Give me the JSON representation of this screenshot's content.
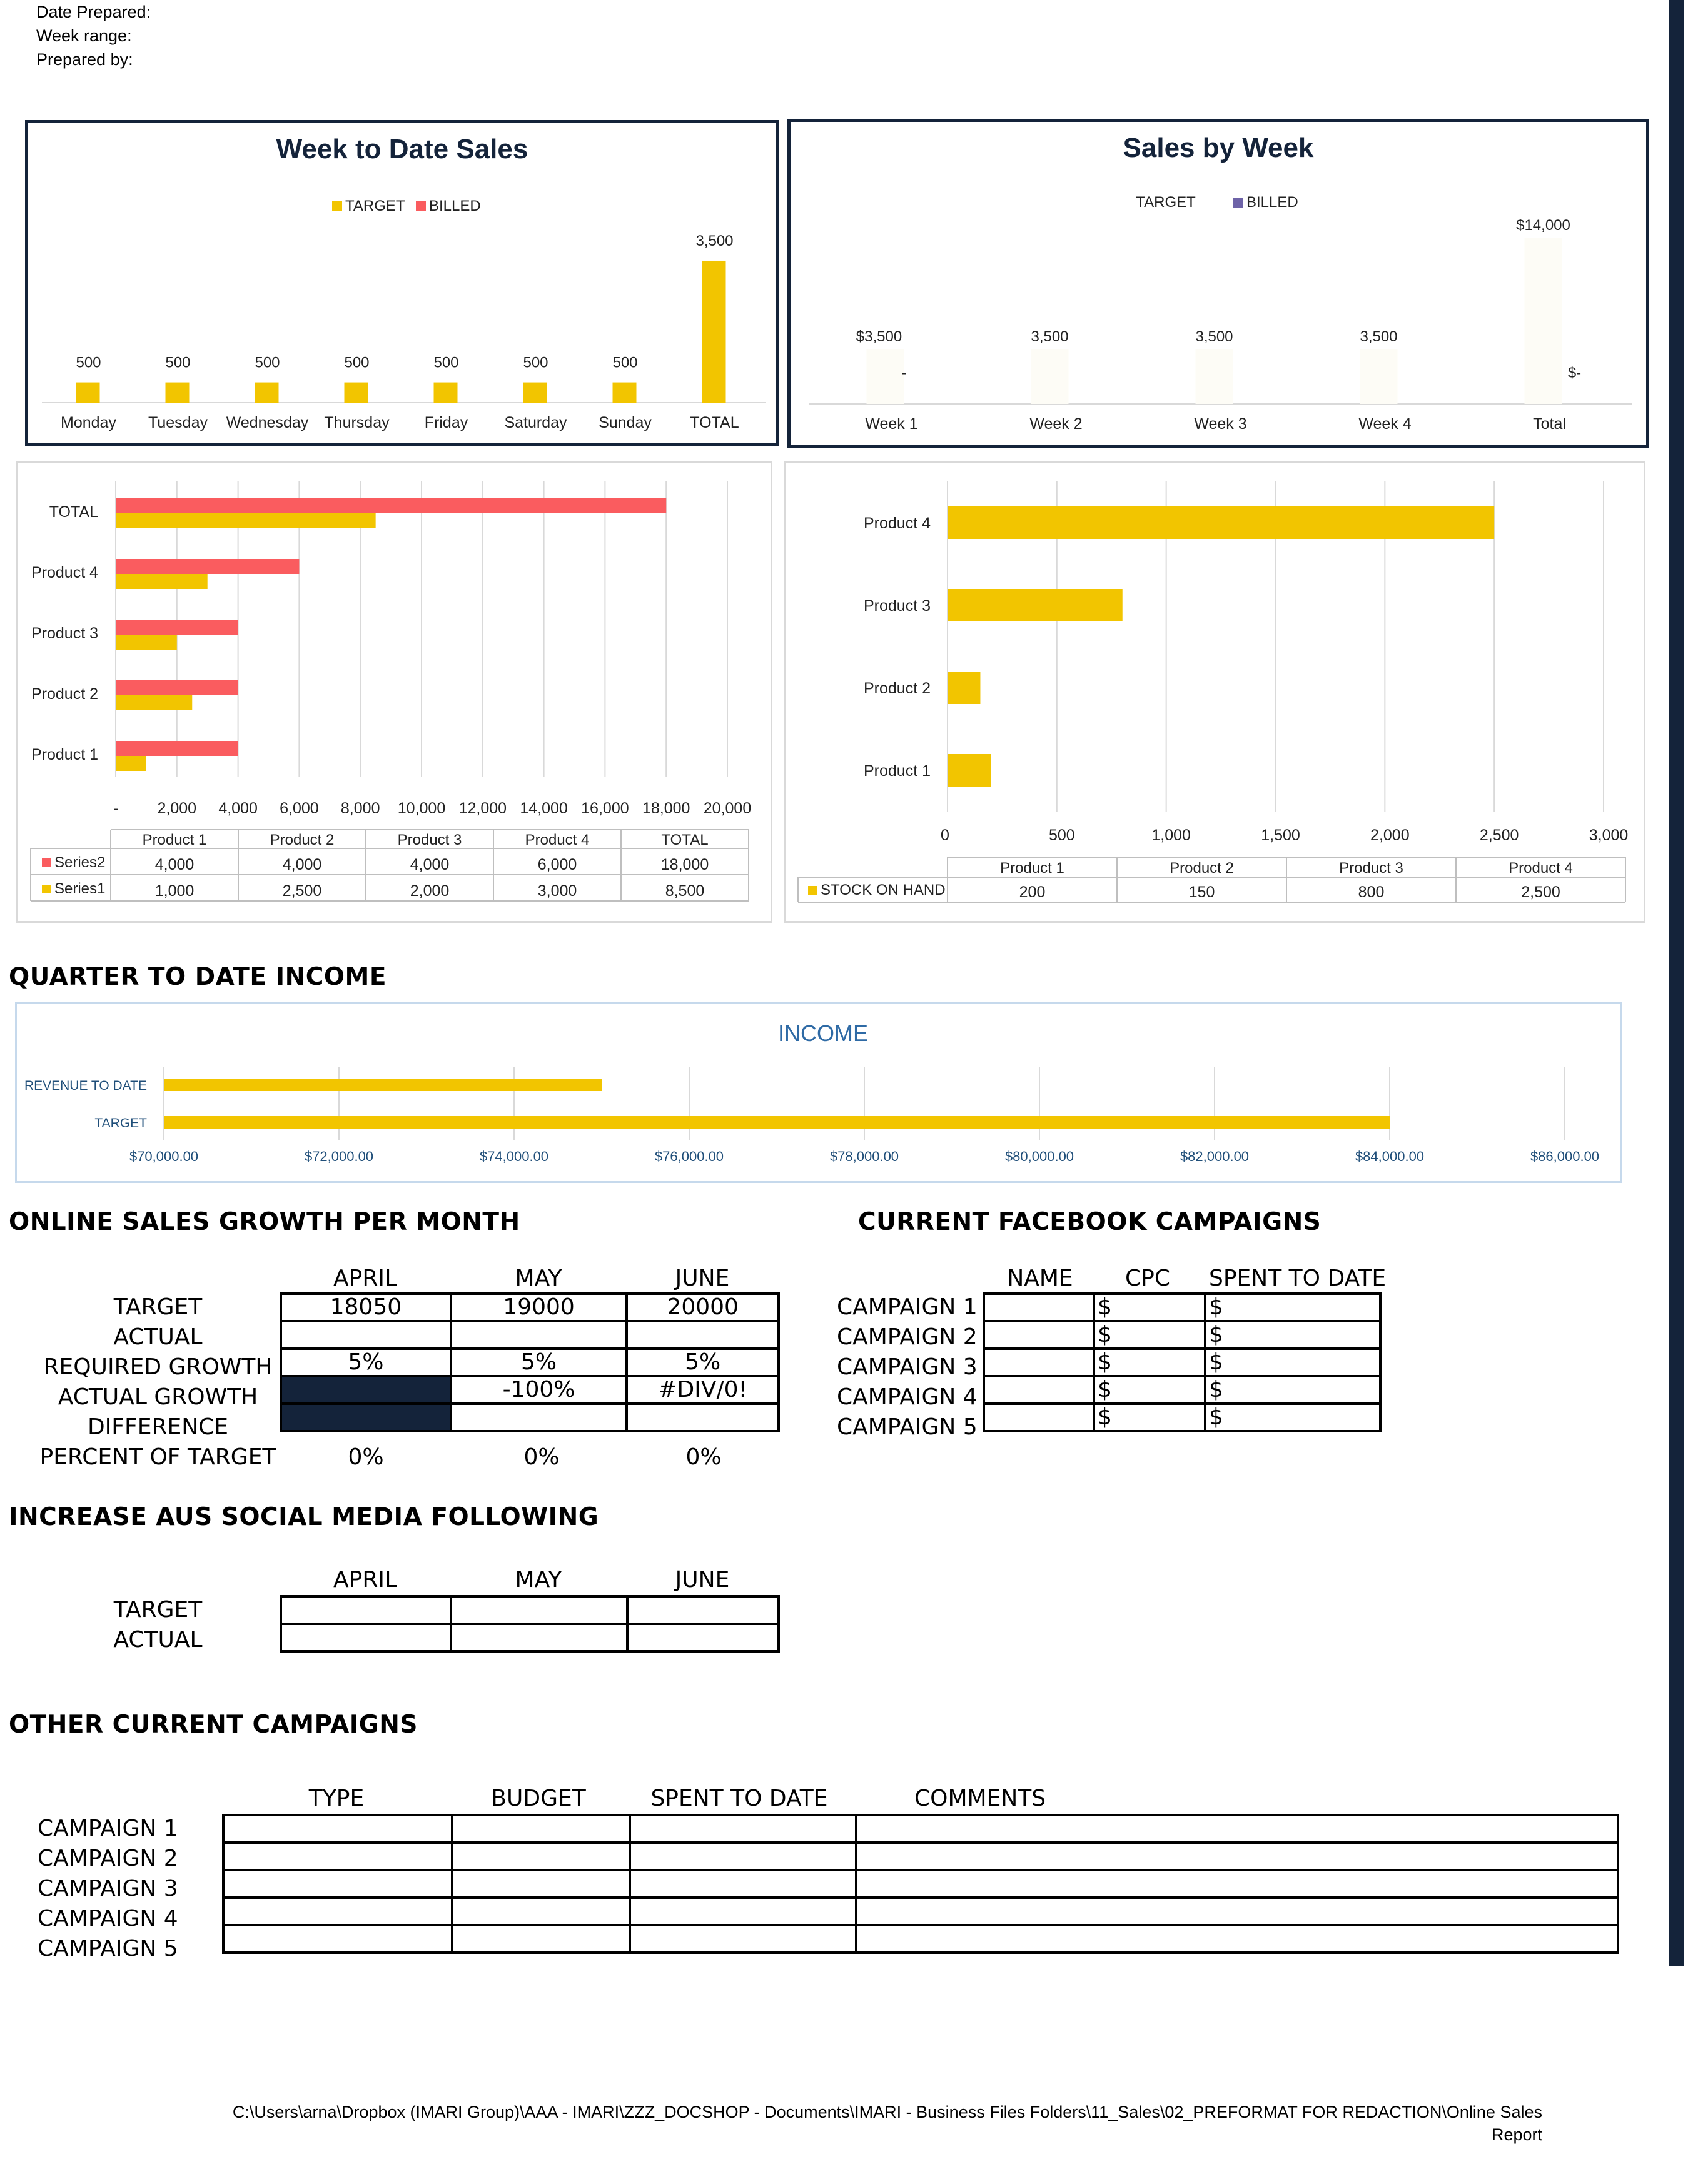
{
  "header": {
    "date_prepared": "Date Prepared:",
    "week_range": "Week range:",
    "prepared_by": "Prepared by:"
  },
  "week_to_date": {
    "title": "Week to Date Sales",
    "legend_target": "TARGET",
    "legend_billed": "BILLED"
  },
  "sales_by_week": {
    "title": "Sales by Week",
    "legend_target": "TARGET",
    "legend_billed": "BILLED"
  },
  "income": {
    "section_title": "QUARTER TO DATE INCOME",
    "chart_title": "INCOME"
  },
  "online_growth": {
    "title": "ONLINE SALES GROWTH PER MONTH",
    "months": [
      "APRIL",
      "MAY",
      "JUNE"
    ],
    "row_labels": [
      "TARGET",
      "ACTUAL",
      "REQUIRED GROWTH",
      "ACTUAL GROWTH",
      "DIFFERENCE",
      "PERCENT OF TARGET"
    ],
    "target": [
      "18050",
      "19000",
      "20000"
    ],
    "required_growth": [
      "5%",
      "5%",
      "5%"
    ],
    "actual_growth": [
      "",
      "-100%",
      "#DIV/0!"
    ],
    "percent_of_target": [
      "0%",
      "0%",
      "0%"
    ]
  },
  "facebook": {
    "title": "CURRENT FACEBOOK CAMPAIGNS",
    "col_name": "NAME",
    "col_cpc": "CPC",
    "col_spent": "SPENT TO DATE",
    "campaigns": [
      "CAMPAIGN 1",
      "CAMPAIGN 2",
      "CAMPAIGN 3",
      "CAMPAIGN 4",
      "CAMPAIGN 5"
    ],
    "currency": "$"
  },
  "social": {
    "title": "INCREASE AUS SOCIAL MEDIA FOLLOWING",
    "months": [
      "APRIL",
      "MAY",
      "JUNE"
    ],
    "row_labels": [
      "TARGET",
      "ACTUAL"
    ]
  },
  "other": {
    "title": "OTHER CURRENT CAMPAIGNS",
    "col_type": "TYPE",
    "col_budget": "BUDGET",
    "col_spent": "SPENT TO DATE",
    "col_comments": "COMMENTS",
    "campaigns": [
      "CAMPAIGN 1",
      "CAMPAIGN 2",
      "CAMPAIGN 3",
      "CAMPAIGN 4",
      "CAMPAIGN 5"
    ]
  },
  "footer": {
    "path_line1": "C:\\Users\\arna\\Dropbox (IMARI Group)\\AAA - IMARI\\ZZZ_DOCSHOP - Documents\\IMARI - Business Files Folders\\11_Sales\\02_PREFORMAT FOR REDACTION\\Online Sales",
    "path_line2": "Report"
  },
  "colors": {
    "gold": "#f2c500",
    "red": "#fa5c5f",
    "purple": "#6e63a8",
    "navy": "#14233a",
    "income_blue": "#2e6aa5",
    "tick_blue": "#1f4e79"
  },
  "chart_data": [
    {
      "id": "week_to_date",
      "type": "bar",
      "categories": [
        "Monday",
        "Tuesday",
        "Wednesday",
        "Thursday",
        "Friday",
        "Saturday",
        "Sunday",
        "TOTAL"
      ],
      "series": [
        {
          "name": "TARGET",
          "values": [
            500,
            500,
            500,
            500,
            500,
            500,
            500,
            3500
          ],
          "labels": [
            "500",
            "500",
            "500",
            "500",
            "500",
            "500",
            "500",
            "3,500"
          ]
        },
        {
          "name": "BILLED",
          "values": [
            0,
            0,
            0,
            0,
            0,
            0,
            0,
            0
          ]
        }
      ],
      "ylim": [
        0,
        3700
      ]
    },
    {
      "id": "sales_by_week",
      "type": "bar",
      "categories": [
        "Week 1",
        "Week 2",
        "Week 3",
        "Week 4",
        "Total"
      ],
      "series": [
        {
          "name": "TARGET",
          "values": [
            3500,
            3500,
            3500,
            3500,
            14000
          ],
          "labels": [
            "$3,500",
            "3,500",
            "3,500",
            "3,500",
            "$14,000"
          ]
        },
        {
          "name": "BILLED",
          "values": [
            0,
            0,
            0,
            0,
            0
          ],
          "labels": [
            "-",
            "",
            "",
            "",
            "$-"
          ]
        }
      ],
      "ylim": [
        0,
        14000
      ]
    },
    {
      "id": "products_billed",
      "type": "bar",
      "orientation": "horizontal",
      "categories": [
        "Product 1",
        "Product 2",
        "Product 3",
        "Product 4",
        "TOTAL"
      ],
      "series": [
        {
          "name": "Series2",
          "values": [
            4000,
            4000,
            4000,
            6000,
            18000
          ],
          "labels": [
            "4,000",
            "4,000",
            "4,000",
            "6,000",
            "18,000"
          ]
        },
        {
          "name": "Series1",
          "values": [
            1000,
            2500,
            2000,
            3000,
            8500
          ],
          "labels": [
            "1,000",
            "2,500",
            "2,000",
            "3,000",
            "8,500"
          ]
        }
      ],
      "xticks": [
        "-",
        "2,000",
        "4,000",
        "6,000",
        "8,000",
        "10,000",
        "12,000",
        "14,000",
        "16,000",
        "18,000",
        "20,000"
      ],
      "xlim": [
        0,
        20000
      ]
    },
    {
      "id": "stock_on_hand",
      "type": "bar",
      "orientation": "horizontal",
      "categories": [
        "Product 1",
        "Product 2",
        "Product 3",
        "Product 4"
      ],
      "series": [
        {
          "name": "STOCK ON HAND",
          "values": [
            200,
            150,
            800,
            2500
          ],
          "labels": [
            "200",
            "150",
            "800",
            "2,500"
          ]
        }
      ],
      "xticks": [
        "0",
        "500",
        "1,000",
        "1,500",
        "2,000",
        "2,500",
        "3,000"
      ],
      "xlim": [
        0,
        3000
      ]
    },
    {
      "id": "income",
      "type": "bar",
      "orientation": "horizontal",
      "title": "INCOME",
      "categories": [
        "REVENUE TO DATE",
        "TARGET"
      ],
      "values": [
        75000,
        84000
      ],
      "xticks": [
        "$70,000.00",
        "$72,000.00",
        "$74,000.00",
        "$76,000.00",
        "$78,000.00",
        "$80,000.00",
        "$82,000.00",
        "$84,000.00",
        "$86,000.00"
      ],
      "xlim": [
        70000,
        86000
      ]
    }
  ]
}
